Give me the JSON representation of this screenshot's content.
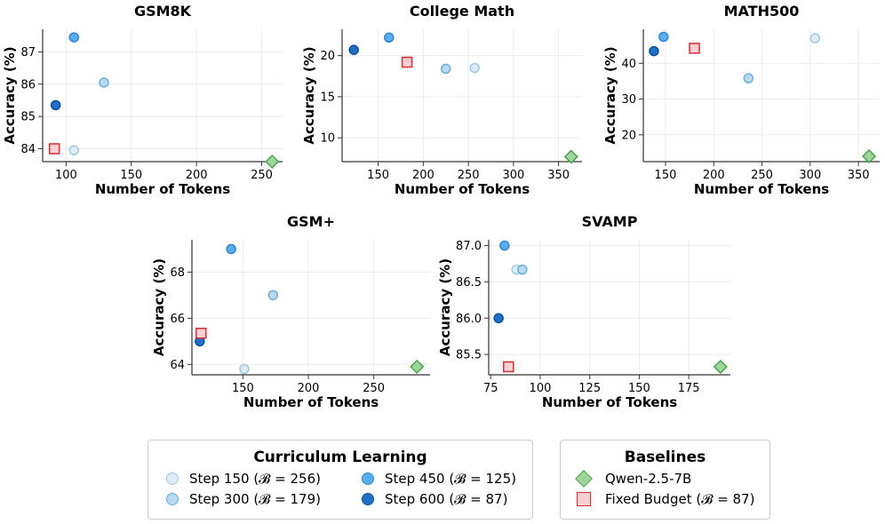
{
  "colors": {
    "step150": "#deebf7",
    "step150_edge": "#9ecae1",
    "step300": "#b8d9f2",
    "step300_edge": "#6baed6",
    "step450": "#5aaef0",
    "step450_edge": "#2f86d6",
    "step600": "#2070c8",
    "step600_edge": "#0b4f9c",
    "qwen": "#9fd49a",
    "qwen_edge": "#4aa54a",
    "fixed": "#f8cfd2",
    "fixed_edge": "#d62c35"
  },
  "chart_data": [
    {
      "type": "scatter",
      "title": "GSM8K",
      "xlabel": "Number of Tokens",
      "ylabel": "Accuracy (%)",
      "xlim": [
        82,
        266
      ],
      "ylim": [
        83.6,
        87.7
      ],
      "xticks": [
        100,
        150,
        200,
        250
      ],
      "xtick_labels": [
        "100",
        "150",
        "200",
        "250"
      ],
      "yticks": [
        84,
        85,
        86,
        87
      ],
      "ytick_labels": [
        "84",
        "85",
        "86",
        "87"
      ],
      "points": [
        {
          "series": "step150",
          "x": 106,
          "y": 83.95
        },
        {
          "series": "step300",
          "x": 129,
          "y": 86.05
        },
        {
          "series": "step450",
          "x": 106,
          "y": 87.45
        },
        {
          "series": "step600",
          "x": 92,
          "y": 85.35
        },
        {
          "series": "qwen",
          "x": 258,
          "y": 83.6
        },
        {
          "series": "fixed",
          "x": 91,
          "y": 84.0
        }
      ]
    },
    {
      "type": "scatter",
      "title": "College Math",
      "xlabel": "Number of Tokens",
      "ylabel": "Accuracy (%)",
      "xlim": [
        110,
        376
      ],
      "ylim": [
        7.1,
        23.2
      ],
      "xticks": [
        150,
        200,
        250,
        300,
        350
      ],
      "xtick_labels": [
        "150",
        "200",
        "250",
        "300",
        "350"
      ],
      "yticks": [
        10,
        15,
        20
      ],
      "ytick_labels": [
        "10",
        "15",
        "20"
      ],
      "points": [
        {
          "series": "step150",
          "x": 257,
          "y": 18.5
        },
        {
          "series": "step300",
          "x": 225,
          "y": 18.4
        },
        {
          "series": "step450",
          "x": 162,
          "y": 22.2
        },
        {
          "series": "step600",
          "x": 123,
          "y": 20.7
        },
        {
          "series": "qwen",
          "x": 364,
          "y": 7.7
        },
        {
          "series": "fixed",
          "x": 182,
          "y": 19.2
        }
      ]
    },
    {
      "type": "scatter",
      "title": "MATH500",
      "xlabel": "Number of Tokens",
      "ylabel": "Accuracy (%)",
      "xlim": [
        127,
        372
      ],
      "ylim": [
        12.5,
        49.5
      ],
      "xticks": [
        150,
        200,
        250,
        300,
        350
      ],
      "xtick_labels": [
        "150",
        "200",
        "250",
        "300",
        "350"
      ],
      "yticks": [
        20,
        30,
        40
      ],
      "ytick_labels": [
        "20",
        "30",
        "40"
      ],
      "points": [
        {
          "series": "step150",
          "x": 305,
          "y": 47.0
        },
        {
          "series": "step300",
          "x": 236,
          "y": 35.8
        },
        {
          "series": "step450",
          "x": 148,
          "y": 47.4
        },
        {
          "series": "step600",
          "x": 138,
          "y": 43.4
        },
        {
          "series": "qwen",
          "x": 361,
          "y": 14.0
        },
        {
          "series": "fixed",
          "x": 180,
          "y": 44.2
        }
      ]
    },
    {
      "type": "scatter",
      "title": "GSM+",
      "xlabel": "Number of Tokens",
      "ylabel": "Accuracy (%)",
      "xlim": [
        111,
        293
      ],
      "ylim": [
        63.55,
        69.4
      ],
      "xticks": [
        150,
        200,
        250
      ],
      "xtick_labels": [
        "150",
        "200",
        "250"
      ],
      "yticks": [
        64,
        66,
        68
      ],
      "ytick_labels": [
        "64",
        "66",
        "68"
      ],
      "points": [
        {
          "series": "step150",
          "x": 151,
          "y": 63.8
        },
        {
          "series": "step300",
          "x": 173,
          "y": 67.0
        },
        {
          "series": "step450",
          "x": 141,
          "y": 69.0
        },
        {
          "series": "step600",
          "x": 117,
          "y": 65.0
        },
        {
          "series": "qwen",
          "x": 283,
          "y": 63.9
        },
        {
          "series": "fixed",
          "x": 118,
          "y": 65.35
        }
      ]
    },
    {
      "type": "scatter",
      "title": "SVAMP",
      "xlabel": "Number of Tokens",
      "ylabel": "Accuracy (%)",
      "xlim": [
        74,
        196
      ],
      "ylim": [
        85.22,
        87.08
      ],
      "xticks": [
        75,
        100,
        125,
        150,
        175
      ],
      "xtick_labels": [
        "75",
        "100",
        "125",
        "150",
        "175"
      ],
      "yticks": [
        85.5,
        86.0,
        86.5,
        87.0
      ],
      "ytick_labels": [
        "85.5",
        "86.0",
        "86.5",
        "87.0"
      ],
      "points": [
        {
          "series": "step150",
          "x": 88,
          "y": 86.67
        },
        {
          "series": "step300",
          "x": 91,
          "y": 86.67
        },
        {
          "series": "step450",
          "x": 82,
          "y": 87.0
        },
        {
          "series": "step600",
          "x": 79,
          "y": 86.0
        },
        {
          "series": "qwen",
          "x": 191,
          "y": 85.33
        },
        {
          "series": "fixed",
          "x": 84,
          "y": 85.33
        }
      ]
    }
  ],
  "legend": {
    "curriculum_title": "Curriculum Learning",
    "curriculum_items": [
      {
        "series": "step150",
        "label": "Step 150 (𝓑 = 256)"
      },
      {
        "series": "step300",
        "label": "Step 300 (𝓑 = 179)"
      },
      {
        "series": "step450",
        "label": "Step 450 (𝓑 = 125)"
      },
      {
        "series": "step600",
        "label": "Step 600 (𝓑 = 87)"
      }
    ],
    "baselines_title": "Baselines",
    "baselines_items": [
      {
        "series": "qwen",
        "label": "Qwen-2.5-7B"
      },
      {
        "series": "fixed",
        "label": "Fixed Budget (𝓑 = 87)"
      }
    ]
  }
}
